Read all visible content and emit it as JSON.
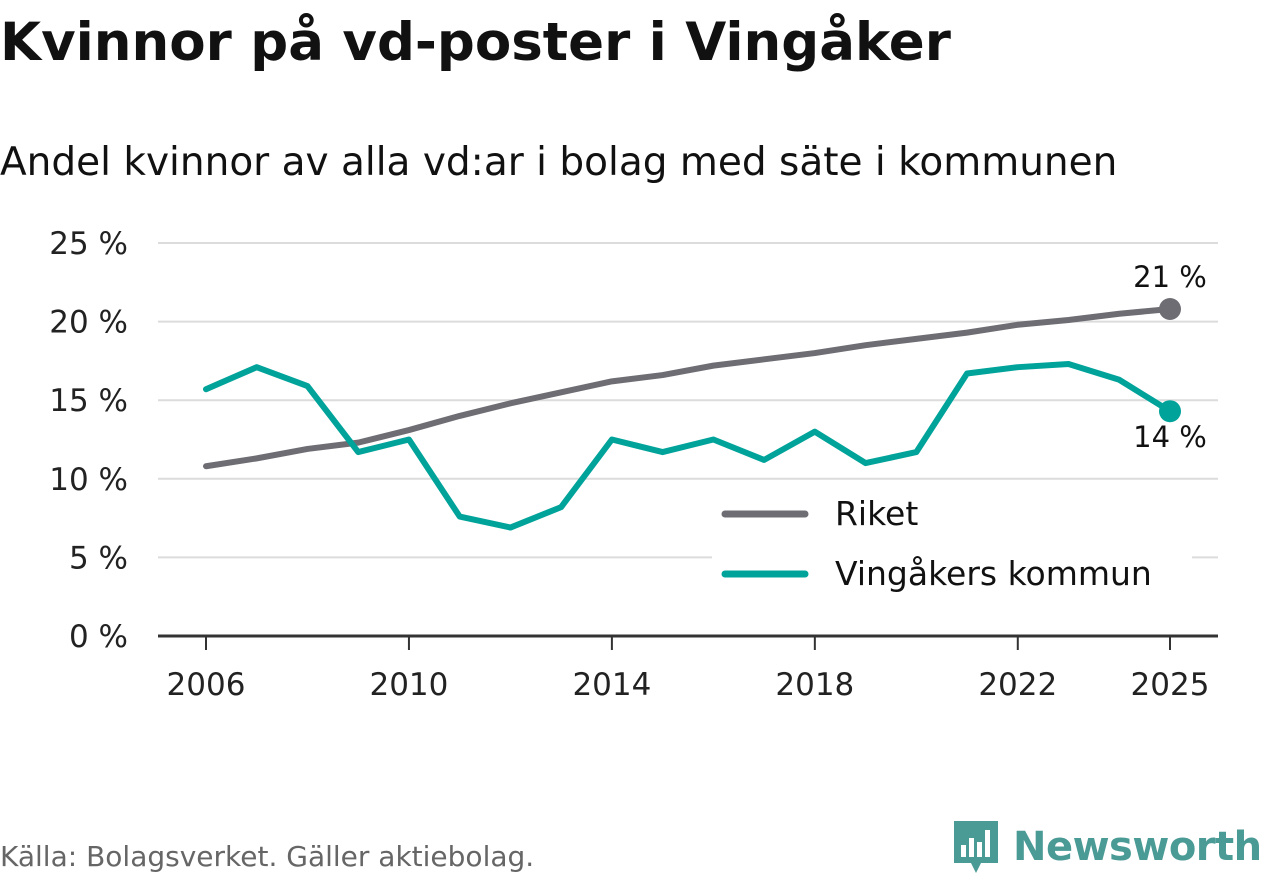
{
  "title": "Kvinnor på vd-poster i Vingåker",
  "subtitle": "Andel kvinnor av alla vd:ar i bolag med säte i kommunen",
  "source": "Källa: Bolagsverket. Gäller aktiebolag.",
  "logo": {
    "text": "Newsworthy",
    "icon": "bar-chart-icon",
    "color": "#4a9a95"
  },
  "colors": {
    "riket": "#6e6d73",
    "kommun": "#00a39a",
    "grid": "#dcdcdc",
    "axis": "#333333"
  },
  "chart_data": {
    "type": "line",
    "title": "Kvinnor på vd-poster i Vingåker",
    "xlabel": "",
    "ylabel": "",
    "ylim": [
      0,
      25
    ],
    "xlim": [
      2006,
      2025
    ],
    "y_ticks": [
      0,
      5,
      10,
      15,
      20,
      25
    ],
    "y_tick_labels": [
      "0 %",
      "5 %",
      "10 %",
      "15 %",
      "20 %",
      "25 %"
    ],
    "x_ticks": [
      2006,
      2010,
      2014,
      2018,
      2022,
      2025
    ],
    "x_tick_labels": [
      "2006",
      "2010",
      "2014",
      "2018",
      "2022",
      "2025"
    ],
    "x": [
      2006,
      2007,
      2008,
      2009,
      2010,
      2011,
      2012,
      2013,
      2014,
      2015,
      2016,
      2017,
      2018,
      2019,
      2020,
      2021,
      2022,
      2023,
      2024,
      2025
    ],
    "series": [
      {
        "name": "Riket",
        "color": "#6e6d73",
        "values": [
          10.8,
          11.3,
          11.9,
          12.3,
          13.1,
          14.0,
          14.8,
          15.5,
          16.2,
          16.6,
          17.2,
          17.6,
          18.0,
          18.5,
          18.9,
          19.3,
          19.8,
          20.1,
          20.5,
          20.8
        ],
        "end_label": "21 %"
      },
      {
        "name": "Vingåkers kommun",
        "color": "#00a39a",
        "values": [
          15.7,
          17.1,
          15.9,
          11.7,
          12.5,
          7.6,
          6.9,
          8.2,
          12.5,
          11.7,
          12.5,
          11.2,
          13.0,
          11.0,
          11.7,
          16.7,
          17.1,
          17.3,
          16.3,
          14.3
        ],
        "end_label": "14 %"
      }
    ],
    "legend": {
      "placement": "bottom-right",
      "items": [
        "Riket",
        "Vingåkers kommun"
      ]
    },
    "grid": true
  }
}
